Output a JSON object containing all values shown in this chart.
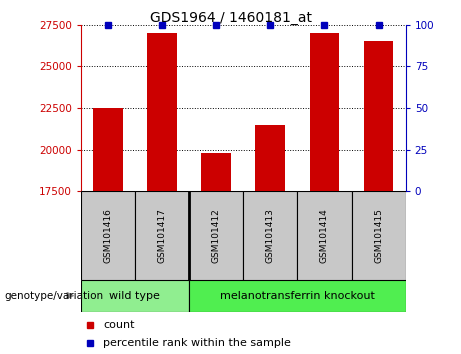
{
  "title": "GDS1964 / 1460181_at",
  "samples": [
    "GSM101416",
    "GSM101417",
    "GSM101412",
    "GSM101413",
    "GSM101414",
    "GSM101415"
  ],
  "counts": [
    22500,
    27000,
    19800,
    21500,
    27000,
    26500
  ],
  "percentile_ranks": [
    100,
    100,
    100,
    100,
    100,
    100
  ],
  "ylim_left": [
    17500,
    27500
  ],
  "ylim_right": [
    0,
    100
  ],
  "yticks_left": [
    17500,
    20000,
    22500,
    25000,
    27500
  ],
  "yticks_right": [
    0,
    25,
    50,
    75,
    100
  ],
  "groups": [
    {
      "label": "wild type",
      "samples_range": [
        0,
        1
      ],
      "color": "#90EE90"
    },
    {
      "label": "melanotransferrin knockout",
      "samples_range": [
        2,
        5
      ],
      "color": "#50EE50"
    }
  ],
  "bar_color": "#CC0000",
  "percentile_color": "#0000BB",
  "bar_width": 0.55,
  "grid_linestyle": ":",
  "grid_color": "#000000",
  "background_label_area": "#C8C8C8",
  "legend_count_color": "#CC0000",
  "legend_percentile_color": "#0000BB",
  "left_tick_color": "#CC0000",
  "right_tick_color": "#0000BB",
  "genotype_label": "genotype/variation"
}
